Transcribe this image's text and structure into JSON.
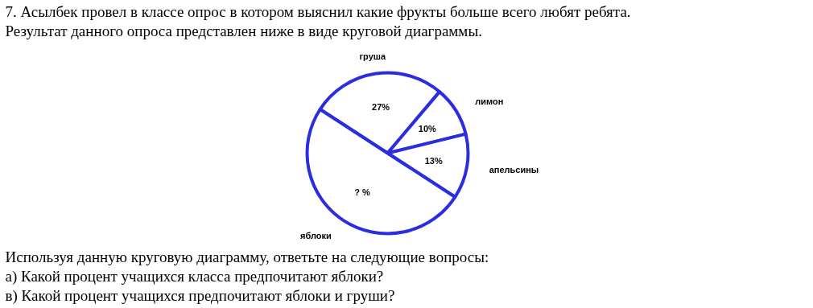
{
  "chart_data": {
    "type": "pie",
    "title": "7.  Асылбек провел в классе опрос в котором выяснил какие фрукты больше всего любят ребята.",
    "subtitle": "Результат данного опроса представлен ниже в виде круговой диаграммы.",
    "categories": [
      "груша",
      "лимон",
      "апельсины",
      "яблоки"
    ],
    "values": [
      27,
      10,
      13,
      50
    ],
    "colors": [
      "#ffffff",
      "#ffffff",
      "#ffffff",
      "#ffffff"
    ],
    "value_labels": [
      "27%",
      "10%",
      "13%",
      "? %"
    ],
    "annotations": [
      "Используя данную круговую диаграмму, ответьте на следующие вопросы:",
      "а) Какой процент учащихся класса предпочитают яблоки?",
      "в) Какой процент учащихся предпочитают яблоки и груши?"
    ]
  }
}
